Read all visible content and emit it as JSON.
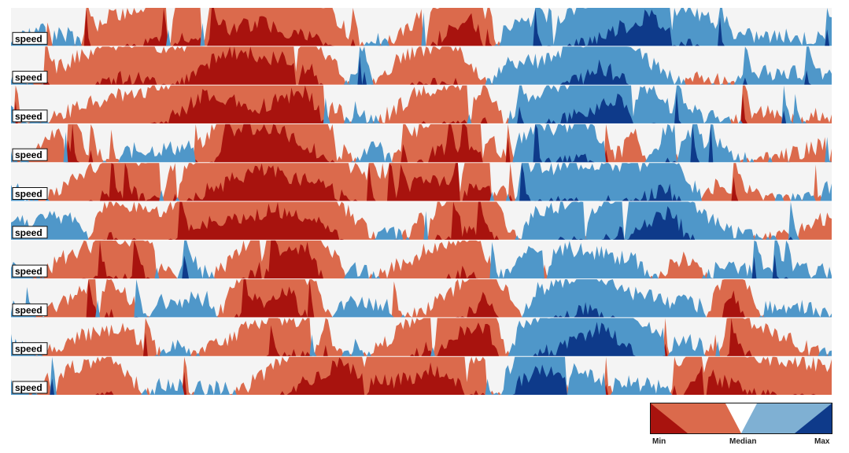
{
  "chart_data": {
    "type": "area",
    "variant": "horizon",
    "row_count": 10,
    "row_label": "speed",
    "bands_per_direction": 2,
    "center": "median",
    "colors": {
      "background": "#f4f4f4",
      "below_band_1": "#db6a4c",
      "below_band_2": "#a8130e",
      "above_band_1": "#4f97c9",
      "above_band_2": "#0e3a8a"
    },
    "legend": {
      "min_label": "Min",
      "median_label": "Median",
      "max_label": "Max",
      "colors": [
        "#a8130e",
        "#db6a4c",
        "#ffffff",
        "#7fb0d3",
        "#0e3a8a"
      ]
    },
    "series_segments": [
      [
        [
          0,
          0.2
        ],
        [
          4,
          0.5
        ],
        [
          7,
          0.3
        ],
        [
          12,
          -0.8
        ],
        [
          30,
          -1.6
        ],
        [
          38,
          -1.1
        ],
        [
          44,
          0.3
        ],
        [
          56,
          -1.9
        ],
        [
          60,
          0.4
        ],
        [
          66,
          0.8
        ],
        [
          72,
          1.3
        ],
        [
          78,
          1.8
        ],
        [
          82,
          1.1
        ],
        [
          88,
          0.3
        ],
        [
          100,
          0.2
        ]
      ],
      [
        [
          0,
          0.3
        ],
        [
          8,
          -0.7
        ],
        [
          14,
          -1.2
        ],
        [
          20,
          -0.9
        ],
        [
          26,
          -1.9
        ],
        [
          36,
          -1.6
        ],
        [
          42,
          0.3
        ],
        [
          48,
          -0.8
        ],
        [
          54,
          -1.1
        ],
        [
          60,
          0.5
        ],
        [
          66,
          0.7
        ],
        [
          72,
          1.5
        ],
        [
          76,
          0.9
        ],
        [
          84,
          -0.3
        ],
        [
          90,
          0.3
        ],
        [
          100,
          0.3
        ]
      ],
      [
        [
          0,
          0.3
        ],
        [
          10,
          -0.6
        ],
        [
          18,
          -0.9
        ],
        [
          24,
          -1.8
        ],
        [
          30,
          -1.4
        ],
        [
          36,
          -1.9
        ],
        [
          42,
          0.4
        ],
        [
          50,
          -0.9
        ],
        [
          58,
          -1.0
        ],
        [
          62,
          0.6
        ],
        [
          70,
          1.3
        ],
        [
          74,
          1.7
        ],
        [
          80,
          0.5
        ],
        [
          92,
          -0.3
        ],
        [
          100,
          -0.2
        ]
      ],
      [
        [
          0,
          0.2
        ],
        [
          6,
          -0.8
        ],
        [
          14,
          0.3
        ],
        [
          22,
          0.4
        ],
        [
          26,
          -1.6
        ],
        [
          32,
          -1.9
        ],
        [
          38,
          -1.2
        ],
        [
          44,
          0.6
        ],
        [
          52,
          -1.4
        ],
        [
          58,
          -1.0
        ],
        [
          62,
          0.7
        ],
        [
          70,
          1.1
        ],
        [
          76,
          -0.8
        ],
        [
          80,
          1.0
        ],
        [
          86,
          0.3
        ],
        [
          100,
          -0.5
        ]
      ],
      [
        [
          0,
          0.4
        ],
        [
          8,
          -0.6
        ],
        [
          12,
          -1.2
        ],
        [
          18,
          -0.9
        ],
        [
          24,
          -1.3
        ],
        [
          30,
          -1.8
        ],
        [
          38,
          -1.5
        ],
        [
          44,
          -0.5
        ],
        [
          50,
          -1.6
        ],
        [
          58,
          -1.4
        ],
        [
          62,
          0.8
        ],
        [
          70,
          1.0
        ],
        [
          76,
          0.9
        ],
        [
          80,
          1.4
        ],
        [
          86,
          -0.5
        ],
        [
          100,
          0.4
        ]
      ],
      [
        [
          0,
          0.5
        ],
        [
          8,
          0.6
        ],
        [
          12,
          -1.1
        ],
        [
          18,
          -0.7
        ],
        [
          24,
          -1.4
        ],
        [
          32,
          -1.8
        ],
        [
          38,
          -1.5
        ],
        [
          46,
          0.4
        ],
        [
          52,
          -1.0
        ],
        [
          58,
          -1.3
        ],
        [
          64,
          0.8
        ],
        [
          72,
          1.0
        ],
        [
          76,
          1.3
        ],
        [
          80,
          1.7
        ],
        [
          86,
          0.4
        ],
        [
          100,
          -0.6
        ]
      ],
      [
        [
          0,
          0.4
        ],
        [
          6,
          -0.5
        ],
        [
          10,
          -0.9
        ],
        [
          16,
          -1.1
        ],
        [
          22,
          0.5
        ],
        [
          28,
          -0.8
        ],
        [
          32,
          -1.6
        ],
        [
          36,
          -1.8
        ],
        [
          42,
          0.3
        ],
        [
          50,
          -0.7
        ],
        [
          56,
          -1.2
        ],
        [
          62,
          0.6
        ],
        [
          68,
          0.8
        ],
        [
          76,
          0.5
        ],
        [
          82,
          -0.6
        ],
        [
          86,
          0.3
        ],
        [
          100,
          0.2
        ]
      ],
      [
        [
          0,
          0.3
        ],
        [
          6,
          -0.4
        ],
        [
          12,
          -1.1
        ],
        [
          18,
          0.4
        ],
        [
          24,
          0.5
        ],
        [
          28,
          -1.2
        ],
        [
          34,
          -1.7
        ],
        [
          40,
          0.4
        ],
        [
          46,
          0.3
        ],
        [
          54,
          -0.7
        ],
        [
          58,
          -1.6
        ],
        [
          64,
          0.7
        ],
        [
          70,
          1.2
        ],
        [
          76,
          0.6
        ],
        [
          84,
          0.3
        ],
        [
          88,
          -1.7
        ],
        [
          92,
          0.3
        ],
        [
          100,
          0.2
        ]
      ],
      [
        [
          0,
          0.4
        ],
        [
          8,
          -0.5
        ],
        [
          14,
          -0.7
        ],
        [
          20,
          0.3
        ],
        [
          30,
          -0.9
        ],
        [
          36,
          -1.0
        ],
        [
          42,
          0.3
        ],
        [
          48,
          -0.8
        ],
        [
          52,
          -1.4
        ],
        [
          58,
          -1.8
        ],
        [
          62,
          0.9
        ],
        [
          68,
          1.3
        ],
        [
          72,
          1.8
        ],
        [
          78,
          0.7
        ],
        [
          84,
          0.3
        ],
        [
          88,
          -1.2
        ],
        [
          94,
          -0.5
        ],
        [
          100,
          0.1
        ]
      ],
      [
        [
          0,
          0.3
        ],
        [
          6,
          -0.6
        ],
        [
          12,
          -1.0
        ],
        [
          18,
          0.3
        ],
        [
          26,
          0.2
        ],
        [
          34,
          -1.1
        ],
        [
          40,
          -1.8
        ],
        [
          46,
          -1.3
        ],
        [
          52,
          -1.7
        ],
        [
          58,
          -0.8
        ],
        [
          62,
          1.4
        ],
        [
          66,
          1.7
        ],
        [
          70,
          0.5
        ],
        [
          80,
          0.2
        ],
        [
          84,
          -1.8
        ],
        [
          88,
          -1.2
        ],
        [
          94,
          -0.9
        ],
        [
          100,
          -0.8
        ]
      ]
    ]
  }
}
